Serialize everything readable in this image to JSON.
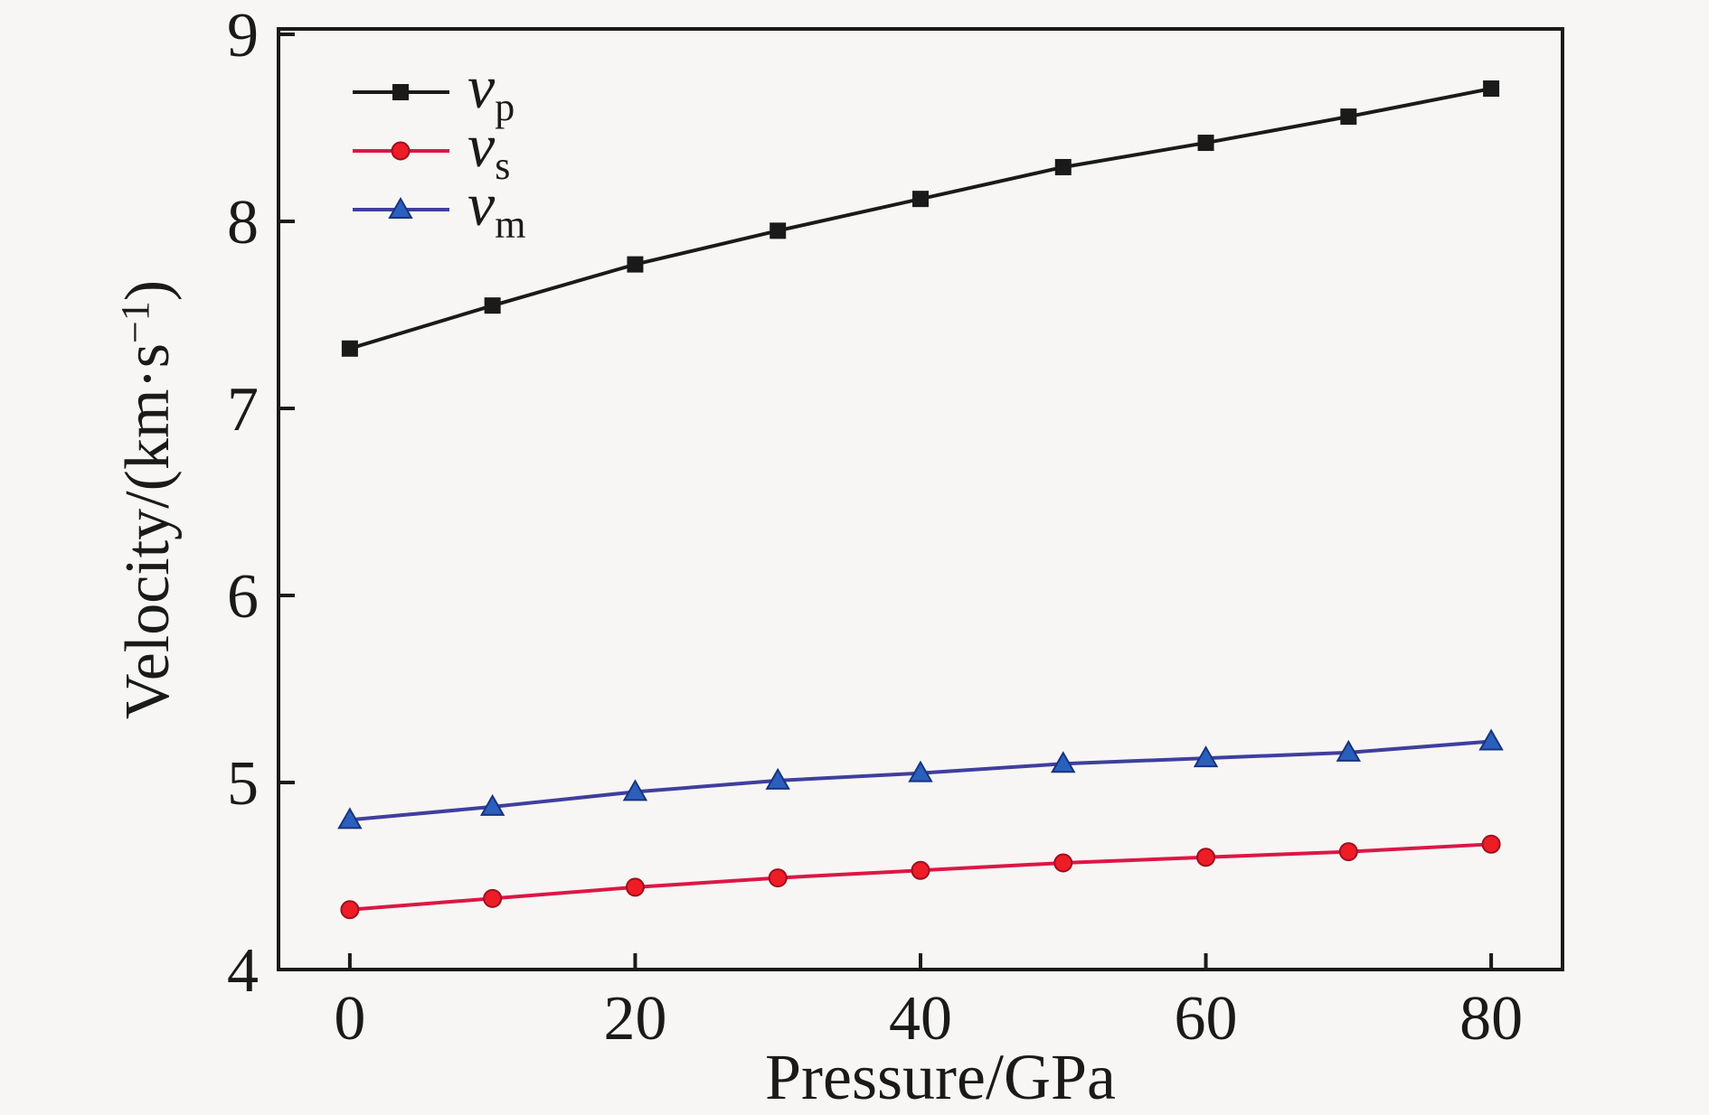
{
  "figure": {
    "background": "#f7f6f4",
    "text_color": "#1a1a1a",
    "frame_color": "#1a1a1a"
  },
  "chart_data": {
    "type": "line",
    "title": "",
    "xlabel": "Pressure/GPa",
    "ylabel": "Velocity/(km·s−1)",
    "ylabel_parts": {
      "pre": "Velocity/(km·s",
      "sup": "−1",
      "post": ")"
    },
    "x": [
      0,
      10,
      20,
      30,
      40,
      50,
      60,
      70,
      80
    ],
    "xticks": [
      0,
      20,
      40,
      60,
      80
    ],
    "yticks": [
      4,
      5,
      6,
      7,
      8,
      9
    ],
    "xlim": [
      -5,
      85
    ],
    "ylim": [
      4,
      9
    ],
    "grid": false,
    "legend_position": "top-left",
    "series": [
      {
        "name": "vp",
        "legend_main": "v",
        "legend_sub": "p",
        "marker": "square",
        "line_color": "#1a1a1a",
        "marker_color": "#1a1a1a",
        "marker_edge": "#1a1a1a",
        "values": [
          7.32,
          7.55,
          7.77,
          7.95,
          8.12,
          8.29,
          8.42,
          8.56,
          8.71
        ]
      },
      {
        "name": "vs",
        "legend_main": "v",
        "legend_sub": "s",
        "marker": "circle",
        "line_color": "#dc1745",
        "marker_color": "#ee1c25",
        "marker_edge": "#9e1020",
        "values": [
          4.32,
          4.38,
          4.44,
          4.49,
          4.53,
          4.57,
          4.6,
          4.63,
          4.67
        ]
      },
      {
        "name": "vm",
        "legend_main": "v",
        "legend_sub": "m",
        "marker": "triangle",
        "line_color": "#3f3f9e",
        "marker_color": "#2b5fbd",
        "marker_edge": "#16347e",
        "values": [
          4.8,
          4.87,
          4.95,
          5.01,
          5.05,
          5.1,
          5.13,
          5.16,
          5.22
        ]
      }
    ]
  }
}
